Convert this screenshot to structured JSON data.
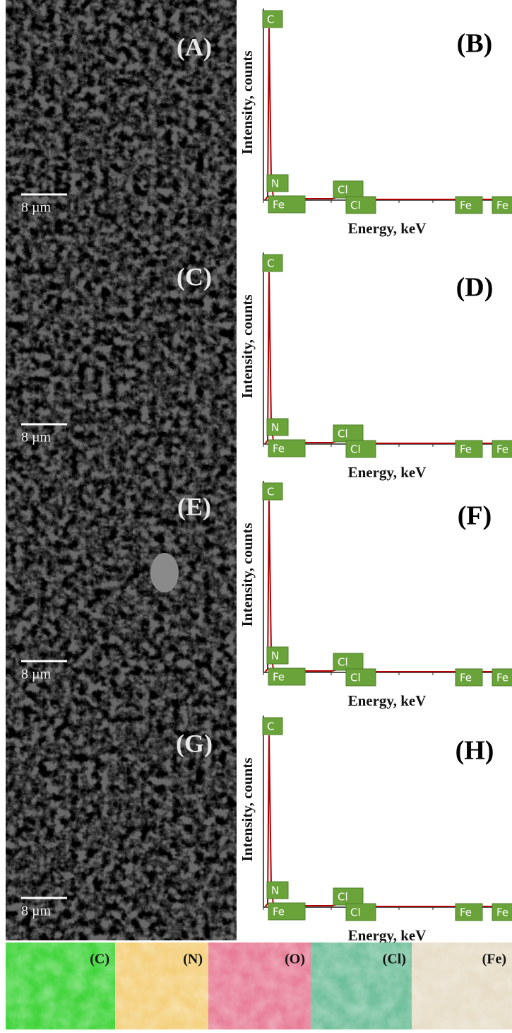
{
  "panels": [
    {
      "image_label": "(A)",
      "scale_bar": "8 µm",
      "spectrum_label": "(B)",
      "y_label": "Intensity, counts",
      "x_label": "Energy, keV",
      "peaks": [
        "C",
        "N",
        "Fe",
        "Cl",
        "Cl",
        "Fe",
        "Fe"
      ]
    },
    {
      "image_label": "(C)",
      "scale_bar": "8 µm",
      "spectrum_label": "(D)",
      "y_label": "Intensity, counts",
      "x_label": "Energy, keV",
      "peaks": [
        "C",
        "N",
        "Fe",
        "Cl",
        "Cl",
        "Fe",
        "Fe"
      ]
    },
    {
      "image_label": "(E)",
      "scale_bar": "8 µm",
      "spectrum_label": "(F)",
      "y_label": "Intensity, counts",
      "x_label": "Energy, keV",
      "peaks": [
        "C",
        "N",
        "Fe",
        "Cl",
        "Cl",
        "Fe",
        "Fe"
      ]
    },
    {
      "image_label": "(G)",
      "scale_bar": "8 µm",
      "spectrum_label": "(H)",
      "y_label": "Intensity, counts",
      "x_label": "Energy, keV",
      "peaks": [
        "C",
        "N",
        "Fe",
        "Cl",
        "Cl",
        "Fe",
        "Fe"
      ]
    }
  ],
  "maps": [
    "(C)",
    "(N)",
    "(O)",
    "(Cl)",
    "(Fe)"
  ]
}
